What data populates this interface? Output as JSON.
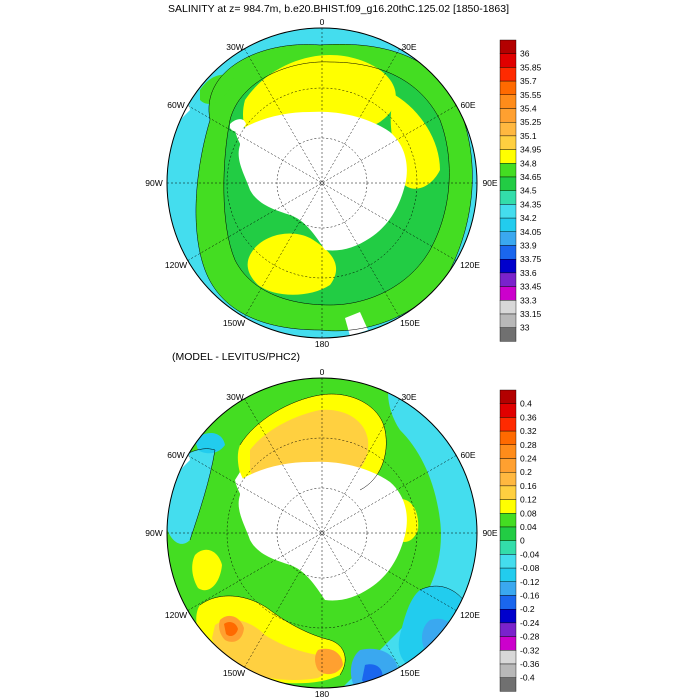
{
  "titles": {
    "top": "SALINITY at z= 984.7m, b.e20.BHIST.f09_g16.20thC.125.02 [1850-1863]",
    "bottom": "(MODEL - LEVITUS/PHC2)"
  },
  "longitude_labels": {
    "lon_0": "0",
    "lon_30e": "30E",
    "lon_60e": "60E",
    "lon_90e": "90E",
    "lon_120e": "120E",
    "lon_150e": "150E",
    "lon_180": "180",
    "lon_150w": "150W",
    "lon_120w": "120W",
    "lon_90w": "90W",
    "lon_60w": "60W",
    "lon_30w": "30W"
  },
  "colorbar_top": {
    "labels": [
      "36",
      "35.85",
      "35.7",
      "35.55",
      "35.4",
      "35.25",
      "35.1",
      "34.95",
      "34.8",
      "34.65",
      "34.5",
      "34.35",
      "34.2",
      "34.05",
      "33.9",
      "33.75",
      "33.6",
      "33.45",
      "33.3",
      "33.15",
      "33"
    ],
    "colors": [
      "#b30000",
      "#e00000",
      "#ff2a00",
      "#ff6a00",
      "#ff8c1a",
      "#ffa030",
      "#ffb840",
      "#ffd040",
      "#ffff00",
      "#44dd22",
      "#22cc44",
      "#33ddaa",
      "#44ddee",
      "#22ccee",
      "#3aa8f0",
      "#1a66ee",
      "#0000cc",
      "#7a22cc",
      "#cc00cc",
      "#d8d8d8",
      "#b8b8b8",
      "#707070"
    ]
  },
  "colorbar_bottom": {
    "labels": [
      "0.4",
      "0.36",
      "0.32",
      "0.28",
      "0.24",
      "0.2",
      "0.16",
      "0.12",
      "0.08",
      "0.04",
      "0",
      "-0.04",
      "-0.08",
      "-0.12",
      "-0.16",
      "-0.2",
      "-0.24",
      "-0.28",
      "-0.32",
      "-0.36",
      "-0.4"
    ],
    "colors": [
      "#b30000",
      "#e00000",
      "#ff2a00",
      "#ff6a00",
      "#ff8c1a",
      "#ffa030",
      "#ffb840",
      "#ffd040",
      "#ffff00",
      "#44dd22",
      "#22cc44",
      "#33ddaa",
      "#44ddee",
      "#22ccee",
      "#3aa8f0",
      "#1a66ee",
      "#0000cc",
      "#7a22cc",
      "#cc00cc",
      "#d8d8d8",
      "#b8b8b8",
      "#707070"
    ]
  },
  "palette": {
    "salinity_high": "#ffff00",
    "salinity_mid": "#44dd22",
    "salinity_low": "#44ddee",
    "anomaly_positive": "#ffd040",
    "anomaly_zero": "#44dd22",
    "anomaly_negative": "#22ccee",
    "land": "#ffffff"
  }
}
